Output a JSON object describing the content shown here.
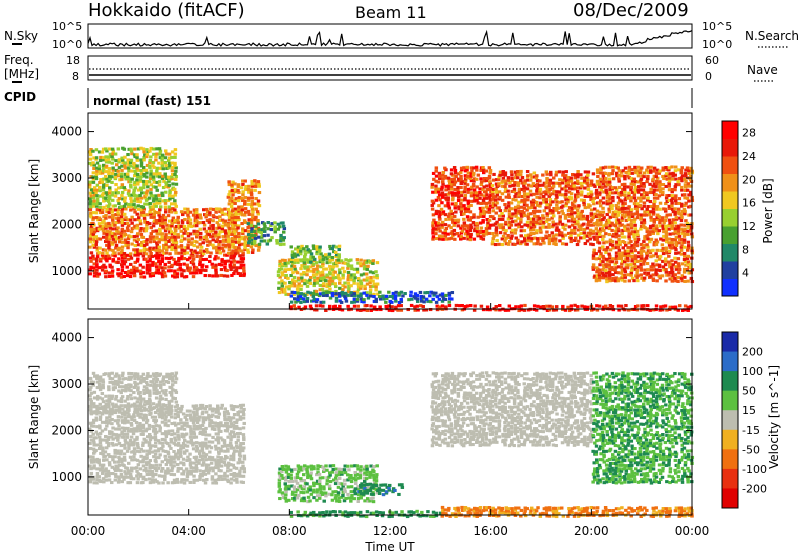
{
  "header": {
    "station": "Hokkaido (fitACF)",
    "beam": "Beam 11",
    "date": "08/Dec/2009"
  },
  "noise_panel": {
    "left_label": "N.Sky",
    "right_label": "N.Search",
    "tick_top": "10^5",
    "tick_bottom": "10^0"
  },
  "freq_panel": {
    "label_line1": "Freq.",
    "label_line2": "[MHz]",
    "ticks_left": [
      "18",
      "8"
    ],
    "ticks_right": [
      "60",
      "0"
    ],
    "right_label": "Nave"
  },
  "cpid_panel": {
    "label": "CPID",
    "program": "normal (fast) 151"
  },
  "x_axis": {
    "label": "Time UT",
    "ticks": [
      "00:00",
      "04:00",
      "08:00",
      "12:00",
      "16:00",
      "20:00",
      "00:00"
    ]
  },
  "colors": {
    "gs": "#bdbdb0",
    "palette": [
      "#1030ff",
      "#2040a0",
      "#208868",
      "#48a030",
      "#98d030",
      "#f0c820",
      "#f09018",
      "#f05010",
      "#e81808",
      "#ff0000"
    ]
  },
  "chart_data": [
    {
      "type": "heatmap",
      "panel": "power",
      "ylabel": "Slant Range [km]",
      "xlabel": "",
      "y_ticks": [
        "1000",
        "2000",
        "3000",
        "4000"
      ],
      "ylim": [
        180,
        4400
      ],
      "xlim_hours": [
        0,
        24
      ],
      "colorbar": {
        "label": "Power [dB]",
        "ticks": [
          "4",
          "8",
          "12",
          "16",
          "20",
          "24",
          "28"
        ],
        "range": [
          0,
          30
        ]
      },
      "echo_regions": [
        {
          "t": [
            0.0,
            6.2
          ],
          "r": [
            900,
            1400
          ],
          "value": 27
        },
        {
          "t": [
            0.0,
            6.0
          ],
          "r": [
            1400,
            2400
          ],
          "value": 21
        },
        {
          "t": [
            0.0,
            3.5
          ],
          "r": [
            2400,
            3700
          ],
          "value": 14
        },
        {
          "t": [
            5.5,
            6.8
          ],
          "r": [
            1400,
            3000
          ],
          "value": 20
        },
        {
          "t": [
            6.3,
            7.8
          ],
          "r": [
            1600,
            2100
          ],
          "value": 10
        },
        {
          "t": [
            7.5,
            11.5
          ],
          "r": [
            500,
            1300
          ],
          "value": 16
        },
        {
          "t": [
            8.0,
            10.0
          ],
          "r": [
            1200,
            1600
          ],
          "value": 12
        },
        {
          "t": [
            8.0,
            14.5
          ],
          "r": [
            350,
            600
          ],
          "value": 5
        },
        {
          "t": [
            13.6,
            16.0
          ],
          "r": [
            1700,
            3300
          ],
          "value": 24
        },
        {
          "t": [
            16.0,
            20.0
          ],
          "r": [
            1600,
            3200
          ],
          "value": 22
        },
        {
          "t": [
            20.0,
            24.0
          ],
          "r": [
            800,
            3300
          ],
          "value": 22
        },
        {
          "t": [
            8.0,
            24.0
          ],
          "r": [
            180,
            320
          ],
          "value": 27
        }
      ]
    },
    {
      "type": "heatmap",
      "panel": "velocity",
      "ylabel": "Slant Range [km]",
      "xlabel": "Time UT",
      "y_ticks": [
        "1000",
        "2000",
        "3000",
        "4000"
      ],
      "ylim": [
        180,
        4400
      ],
      "xlim_hours": [
        0,
        24
      ],
      "colorbar": {
        "label": "Velocity [m s^-1]",
        "ticks": [
          "200",
          "100",
          "50",
          "15",
          "-15",
          "-50",
          "-100",
          "-200"
        ],
        "range": [
          -250,
          250
        ]
      },
      "echo_regions": [
        {
          "t": [
            0.0,
            6.2
          ],
          "r": [
            900,
            2600
          ],
          "value": "gs"
        },
        {
          "t": [
            0.0,
            3.5
          ],
          "r": [
            2400,
            3300
          ],
          "value": "gs"
        },
        {
          "t": [
            7.5,
            11.5
          ],
          "r": [
            500,
            1300
          ],
          "value": 20
        },
        {
          "t": [
            10.5,
            12.5
          ],
          "r": [
            650,
            900
          ],
          "value": 60
        },
        {
          "t": [
            13.6,
            20.0
          ],
          "r": [
            1700,
            3300
          ],
          "value": "gs"
        },
        {
          "t": [
            20.0,
            24.0
          ],
          "r": [
            900,
            3300
          ],
          "value": 30
        },
        {
          "t": [
            8.0,
            14.0
          ],
          "r": [
            180,
            320
          ],
          "value": 40
        },
        {
          "t": [
            14.0,
            24.0
          ],
          "r": [
            180,
            400
          ],
          "value": -40
        }
      ]
    }
  ]
}
